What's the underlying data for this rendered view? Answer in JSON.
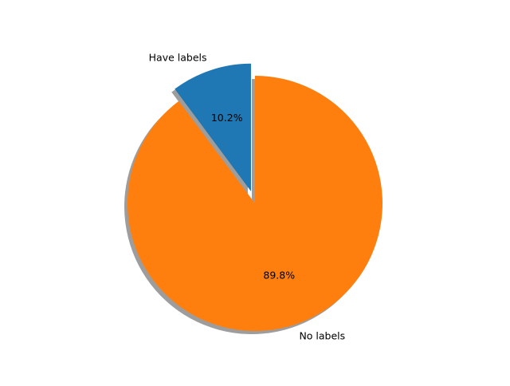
{
  "chart_data": {
    "type": "pie",
    "title": "",
    "labels": [
      "Have labels",
      "No labels"
    ],
    "values": [
      10.2,
      89.8
    ],
    "percent_labels": [
      "10.2%",
      "89.8%"
    ],
    "colors": [
      "#1f77b4",
      "#ff7f0e"
    ],
    "exploded": [
      true,
      false
    ],
    "shadow": true,
    "start_angle_deg": 90,
    "direction": "counterclockwise"
  }
}
